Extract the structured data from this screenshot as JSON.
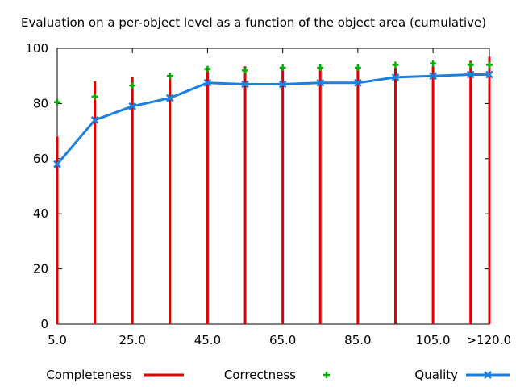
{
  "chart_data": {
    "type": "line",
    "title": "Evaluation on a per-object level as a function of the object area (cumulative)",
    "xlabel": "",
    "ylabel": "",
    "x": [
      5.0,
      15.0,
      25.0,
      35.0,
      45.0,
      55.0,
      65.0,
      75.0,
      85.0,
      95.0,
      105.0,
      115.0,
      120.0
    ],
    "x_tick_labels": [
      "5.0",
      "25.0",
      "45.0",
      "65.0",
      "85.0",
      "105.0",
      ">120.0"
    ],
    "x_tick_values": [
      5.0,
      25.0,
      45.0,
      65.0,
      85.0,
      105.0,
      120.0
    ],
    "xlim": [
      5.0,
      120.0
    ],
    "y_tick_labels": [
      "0",
      "20",
      "40",
      "60",
      "80",
      "100"
    ],
    "ylim": [
      0,
      100
    ],
    "grid": false,
    "legend_position": "bottom",
    "series": [
      {
        "name": "Completeness",
        "style": "impulses",
        "color": "#e00000",
        "values": [
          68,
          88,
          89.5,
          89.5,
          93,
          93.5,
          93,
          93,
          93,
          93,
          93.5,
          95.5,
          97
        ]
      },
      {
        "name": "Correctness",
        "style": "points",
        "marker": "plus",
        "color": "#00b000",
        "values": [
          80.5,
          82.5,
          86.5,
          90,
          92.5,
          92,
          93,
          93,
          93,
          94,
          94.5,
          94,
          94
        ]
      },
      {
        "name": "Quality",
        "style": "linespoints",
        "marker": "x",
        "color": "#1a7fe0",
        "values": [
          58,
          74,
          79,
          82,
          87.5,
          87,
          87,
          87.5,
          87.5,
          89.5,
          90,
          90.5,
          90.5
        ]
      }
    ]
  }
}
